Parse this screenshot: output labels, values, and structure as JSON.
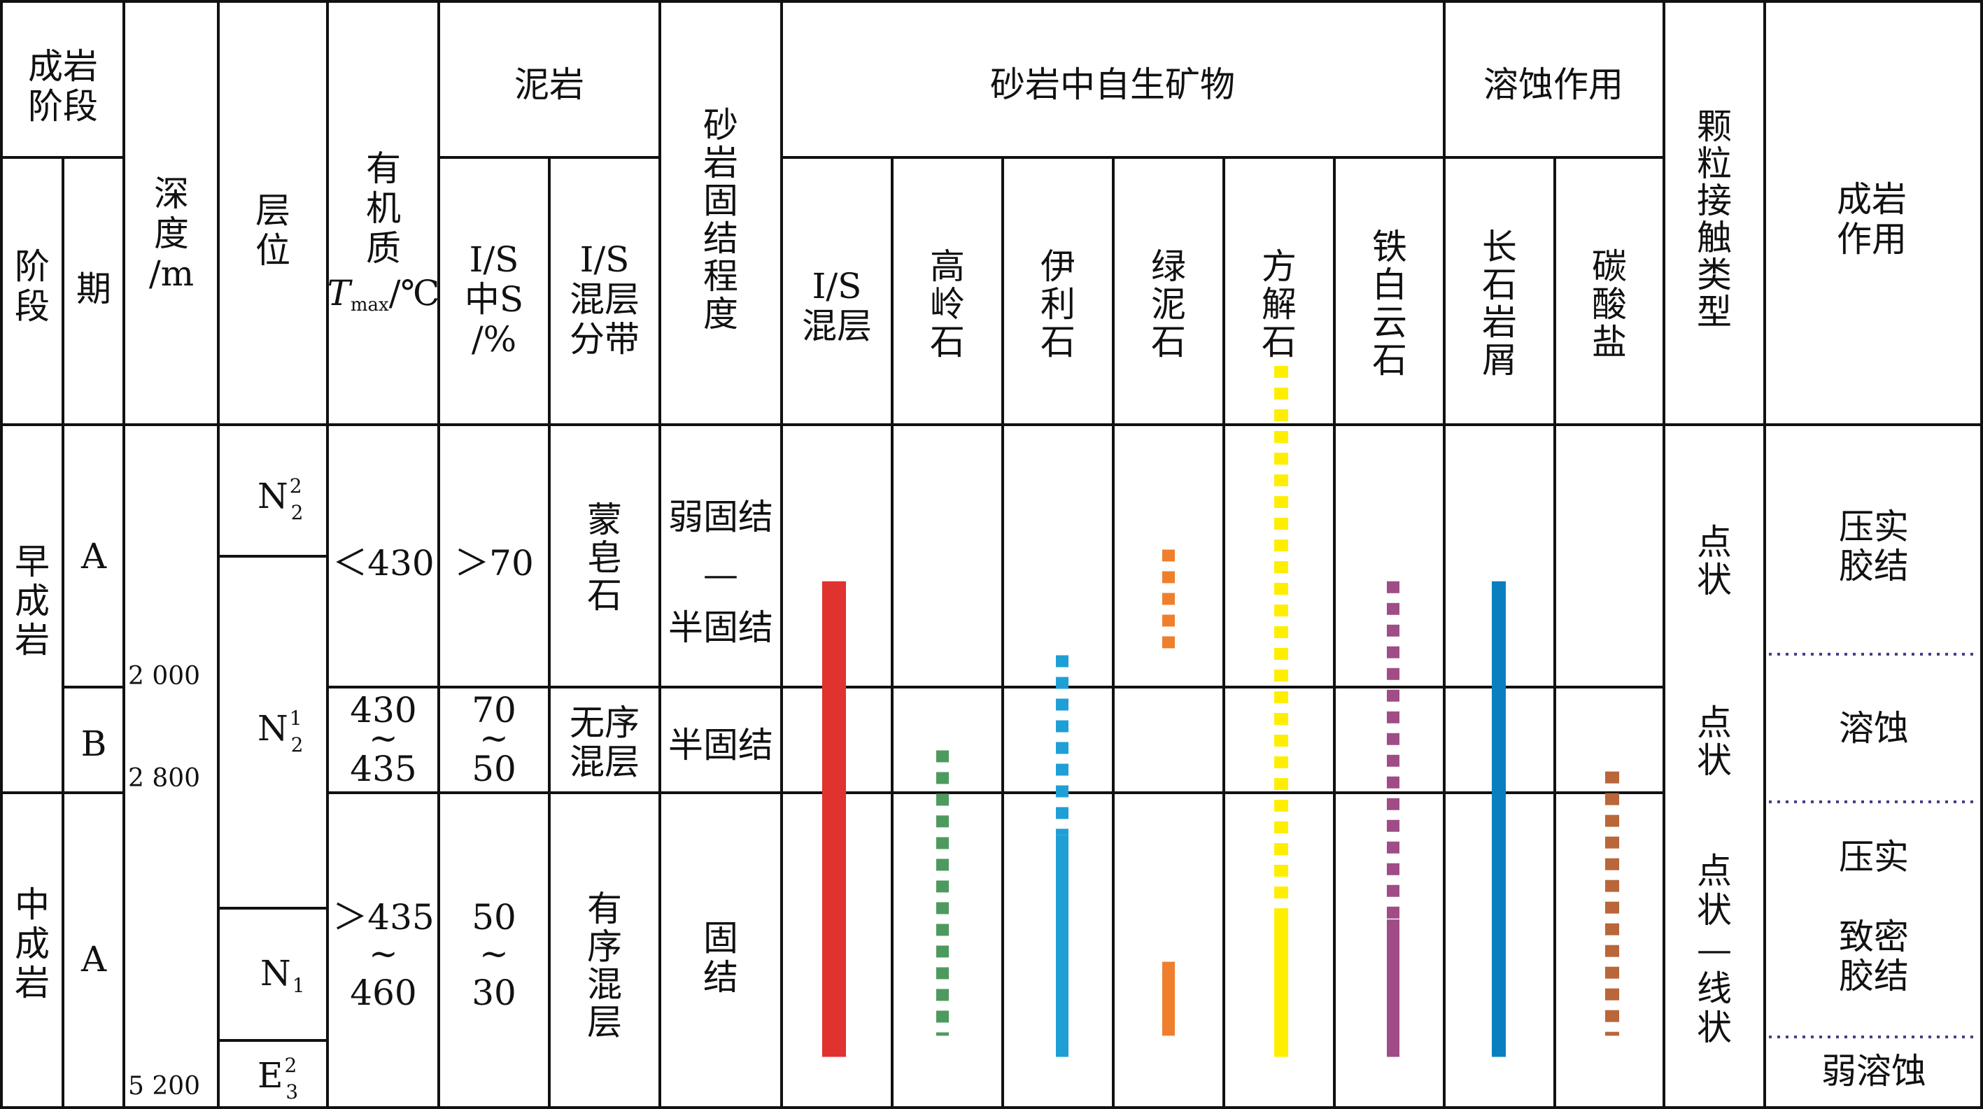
{
  "headers": {
    "stage_group": [
      "成岩",
      "阶段"
    ],
    "stage": [
      "阶",
      "段"
    ],
    "period": "期",
    "depth": [
      "深",
      "度",
      "/m"
    ],
    "horizon": [
      "层",
      "位"
    ],
    "organic": [
      "有",
      "机",
      "质"
    ],
    "tmax_T": "T",
    "tmax_sub": "max",
    "tmax_unit": "/℃",
    "mudstone": "泥岩",
    "is_s": [
      "I/S",
      "中S",
      "/%"
    ],
    "is_zone": [
      "I/S",
      "混层",
      "分带"
    ],
    "consolidation": [
      "砂",
      "岩",
      "固",
      "结",
      "程",
      "度"
    ],
    "authigenic": "砂岩中自生矿物",
    "minerals": [
      [
        "I/S",
        "混层"
      ],
      [
        "高",
        "岭",
        "石"
      ],
      [
        "伊",
        "利",
        "石"
      ],
      [
        "绿",
        "泥",
        "石"
      ],
      [
        "方",
        "解",
        "石"
      ],
      [
        "铁",
        "白",
        "云",
        "石"
      ]
    ],
    "dissolution": "溶蚀作用",
    "diss_cols": [
      [
        "长",
        "石",
        "岩",
        "屑"
      ],
      [
        "碳",
        "酸",
        "盐"
      ]
    ],
    "contact": [
      "颗",
      "粒",
      "接",
      "触",
      "类",
      "型"
    ],
    "diagenesis": [
      "成岩",
      "作用"
    ]
  },
  "rows": {
    "stage_early": [
      "早",
      "成",
      "岩"
    ],
    "stage_middle": [
      "中",
      "成",
      "岩"
    ],
    "period_a1": "A",
    "period_b": "B",
    "period_a2": "A",
    "depth_1": "2 000",
    "depth_2": "2 800",
    "depth_3": "5 200",
    "horizon_n22": {
      "base": "N",
      "sup": "2",
      "sub": "2"
    },
    "horizon_n21": {
      "base": "N",
      "sup": "1",
      "sub": "2"
    },
    "horizon_n1": {
      "base": "N",
      "sub": "1"
    },
    "horizon_e32": {
      "base": "E",
      "sup": "2",
      "sub": "3"
    },
    "organic_1": "＜430",
    "organic_2": [
      "430",
      "~",
      "435"
    ],
    "organic_3": [
      "＞435",
      "~",
      "460"
    ],
    "is_s_1": "＞70",
    "is_s_2": [
      "70",
      "~",
      "50"
    ],
    "is_s_3": [
      "50",
      "~",
      "30"
    ],
    "zone_1": [
      "蒙",
      "皂",
      "石"
    ],
    "zone_2": [
      "无序",
      "混层"
    ],
    "zone_3": [
      "有",
      "序",
      "混",
      "层"
    ],
    "cons_1": [
      "弱固结",
      "—",
      "半固结"
    ],
    "cons_2": "半固结",
    "cons_3": [
      "固",
      "结"
    ],
    "contact_1": [
      "点",
      "状"
    ],
    "contact_2": [
      "点",
      "状"
    ],
    "contact_3": [
      "点",
      "状",
      "—",
      "线",
      "状"
    ],
    "diag_1": [
      "压实",
      "胶结"
    ],
    "diag_2": "溶蚀",
    "diag_3a": "压实",
    "diag_3b": [
      "致密",
      "胶结"
    ],
    "diag_4": "弱溶蚀"
  },
  "bars": [
    {
      "name": "is-mixed-layer",
      "color": "#e0322e",
      "segments": [
        {
          "from": 0.55,
          "to": 1.0,
          "style": "solid"
        }
      ]
    },
    {
      "name": "kaolinite",
      "color": "#4e9a5e",
      "segments": [
        {
          "from": 0.71,
          "to": 0.98,
          "style": "dashed"
        }
      ]
    },
    {
      "name": "illite",
      "color": "#1f9fd6",
      "segments": [
        {
          "from": 0.62,
          "to": 0.79,
          "style": "dashed"
        },
        {
          "from": 0.79,
          "to": 1.0,
          "style": "solid"
        }
      ]
    },
    {
      "name": "chlorite",
      "color": "#ef7f2c",
      "segments": [
        {
          "from": 0.52,
          "to": 0.62,
          "style": "dashed"
        },
        {
          "from": 0.91,
          "to": 0.98,
          "style": "solid"
        }
      ]
    },
    {
      "name": "calcite",
      "color": "#ffee00",
      "segments": [
        {
          "from": 0.33,
          "to": 0.87,
          "style": "dashed"
        },
        {
          "from": 0.87,
          "to": 1.0,
          "style": "solid"
        }
      ]
    },
    {
      "name": "ankerite",
      "color": "#a04c86",
      "segments": [
        {
          "from": 0.55,
          "to": 0.87,
          "style": "dashed"
        },
        {
          "from": 0.87,
          "to": 1.0,
          "style": "solid"
        }
      ]
    },
    {
      "name": "feldspar-debris",
      "color": "#0a7fbf",
      "segments": [
        {
          "from": 0.55,
          "to": 1.0,
          "style": "solid"
        }
      ]
    },
    {
      "name": "carbonate",
      "color": "#b9663a",
      "segments": [
        {
          "from": 0.73,
          "to": 0.98,
          "style": "dashed"
        }
      ]
    }
  ]
}
